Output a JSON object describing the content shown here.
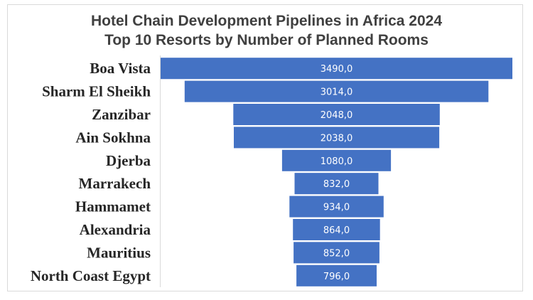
{
  "chart_data": {
    "type": "bar",
    "orientation": "horizontal",
    "style": "funnel",
    "title": "Hotel Chain Development Pipelines in Africa 2024",
    "subtitle": "Top 10 Resorts by Number of Planned Rooms",
    "categories": [
      "Boa Vista",
      "Sharm El Sheikh",
      "Zanzibar",
      "Ain Sokhna",
      "Djerba",
      "Marrakech",
      "Hammamet",
      "Alexandria",
      "Mauritius",
      "North Coast Egypt"
    ],
    "values": [
      3490,
      3014,
      2048,
      2038,
      1080,
      832,
      934,
      864,
      852,
      796
    ],
    "value_labels": [
      "3490,0",
      "3014,0",
      "2048,0",
      "2038,0",
      "1080,0",
      "832,0",
      "934,0",
      "864,0",
      "852,0",
      "796,0"
    ],
    "bar_color": "#4472c4",
    "bar_label_color": "#ffffff",
    "xlabel": "",
    "ylabel": "",
    "grid": false,
    "legend": "none"
  }
}
